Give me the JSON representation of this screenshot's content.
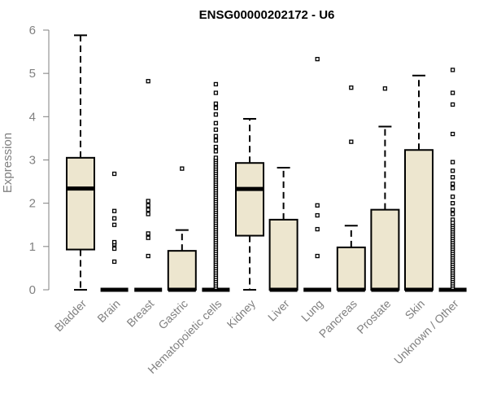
{
  "chart_data": {
    "type": "boxplot",
    "title": "ENSG00000202172 - U6",
    "xlabel": "",
    "ylabel": "Expression",
    "ylim": [
      0,
      6
    ],
    "yticks": [
      "0",
      "1",
      "2",
      "3",
      "4",
      "5",
      "6"
    ],
    "grid": false,
    "legend": "none",
    "colors": {
      "box_fill": "#ede6cf",
      "line": "#000000",
      "axis_text": "#808080"
    },
    "categories": [
      "Bladder",
      "Brain",
      "Breast",
      "Gastric",
      "Hematopoietic cells",
      "Kidney",
      "Liver",
      "Lung",
      "Pancreas",
      "Prostate",
      "Skin",
      "Unknown / Other"
    ],
    "boxes": [
      {
        "category": "Bladder",
        "min": 0,
        "q1": 0.93,
        "median": 2.34,
        "q3": 3.05,
        "max": 5.88,
        "outliers": []
      },
      {
        "category": "Brain",
        "min": 0,
        "q1": 0,
        "median": 0,
        "q3": 0,
        "max": 0,
        "outliers": [
          0.65,
          0.95,
          1.05,
          1.1,
          1.5,
          1.65,
          1.82,
          2.68
        ]
      },
      {
        "category": "Breast",
        "min": 0,
        "q1": 0,
        "median": 0,
        "q3": 0,
        "max": 0,
        "outliers": [
          0.78,
          1.2,
          1.3,
          1.75,
          1.85,
          1.95,
          2.05,
          4.82
        ]
      },
      {
        "category": "Gastric",
        "min": 0,
        "q1": 0,
        "median": 0,
        "q3": 0.9,
        "max": 1.38,
        "outliers": [
          2.8
        ]
      },
      {
        "category": "Hematopoietic cells",
        "min": 0,
        "q1": 0,
        "median": 0,
        "q3": 0,
        "max": 0,
        "outliers": [
          0.05,
          0.1,
          0.15,
          0.2,
          0.25,
          0.3,
          0.35,
          0.4,
          0.45,
          0.5,
          0.55,
          0.6,
          0.65,
          0.7,
          0.75,
          0.8,
          0.85,
          0.9,
          0.95,
          1.0,
          1.05,
          1.1,
          1.15,
          1.2,
          1.25,
          1.3,
          1.35,
          1.4,
          1.45,
          1.5,
          1.55,
          1.6,
          1.65,
          1.7,
          1.75,
          1.8,
          1.85,
          1.9,
          1.95,
          2.0,
          2.05,
          2.1,
          2.15,
          2.2,
          2.25,
          2.3,
          2.35,
          2.4,
          2.45,
          2.5,
          2.55,
          2.6,
          2.65,
          2.7,
          2.75,
          2.8,
          2.85,
          2.9,
          2.95,
          3.0,
          3.05,
          3.2,
          3.3,
          3.45,
          3.55,
          3.7,
          3.85,
          4.05,
          4.2,
          4.3,
          4.55,
          4.75
        ]
      },
      {
        "category": "Kidney",
        "min": 0,
        "q1": 1.25,
        "median": 2.33,
        "q3": 2.93,
        "max": 3.95,
        "outliers": []
      },
      {
        "category": "Liver",
        "min": 0,
        "q1": 0,
        "median": 0,
        "q3": 1.62,
        "max": 2.82,
        "outliers": []
      },
      {
        "category": "Lung",
        "min": 0,
        "q1": 0,
        "median": 0,
        "q3": 0,
        "max": 0,
        "outliers": [
          0.78,
          1.4,
          1.72,
          1.95,
          5.33
        ]
      },
      {
        "category": "Pancreas",
        "min": 0,
        "q1": 0,
        "median": 0,
        "q3": 0.98,
        "max": 1.48,
        "outliers": [
          3.42,
          4.67
        ]
      },
      {
        "category": "Prostate",
        "min": 0,
        "q1": 0,
        "median": 0,
        "q3": 1.85,
        "max": 3.77,
        "outliers": [
          4.65
        ]
      },
      {
        "category": "Skin",
        "min": 0,
        "q1": 0,
        "median": 0,
        "q3": 3.23,
        "max": 4.95,
        "outliers": []
      },
      {
        "category": "Unknown / Other",
        "min": 0,
        "q1": 0,
        "median": 0,
        "q3": 0,
        "max": 0,
        "outliers": [
          0.05,
          0.1,
          0.15,
          0.2,
          0.25,
          0.3,
          0.35,
          0.4,
          0.45,
          0.5,
          0.55,
          0.6,
          0.65,
          0.7,
          0.75,
          0.8,
          0.85,
          0.9,
          0.95,
          1.0,
          1.05,
          1.1,
          1.15,
          1.2,
          1.25,
          1.3,
          1.35,
          1.4,
          1.45,
          1.5,
          1.55,
          1.62,
          1.75,
          1.85,
          2.0,
          2.15,
          2.35,
          2.45,
          2.6,
          2.75,
          2.95,
          3.6,
          4.28,
          4.55,
          5.08
        ]
      }
    ]
  }
}
